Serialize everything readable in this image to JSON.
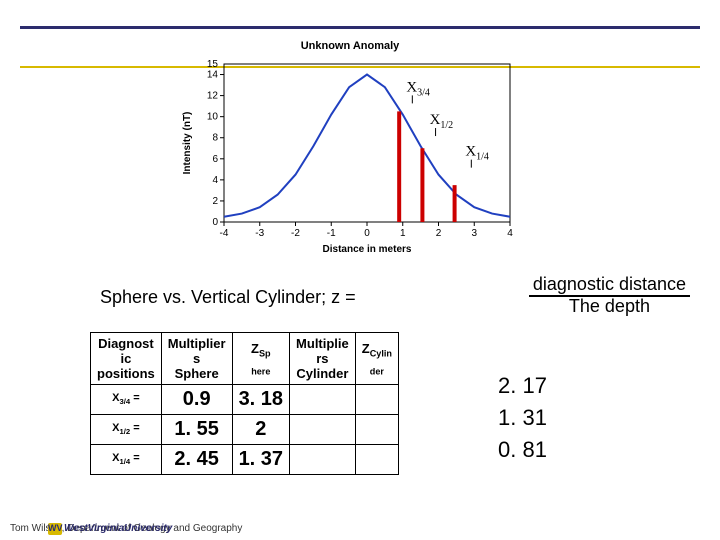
{
  "ruleColors": {
    "top": "#2c2c6d",
    "gold": "#d7b900"
  },
  "chart": {
    "title": "Unknown Anomaly",
    "xlabel": "Distance in meters",
    "ylabel": "Intensity (nT)",
    "xlim": [
      -4,
      4
    ],
    "ylim": [
      0,
      15
    ],
    "xticks": [
      -4,
      -3,
      -2,
      -1,
      0,
      1,
      2,
      3,
      4
    ],
    "yticks": [
      0,
      2,
      4,
      6,
      8,
      10,
      12,
      14
    ],
    "curve_x": [
      -4,
      -3.5,
      -3,
      -2.5,
      -2,
      -1.5,
      -1,
      -0.5,
      0,
      0.5,
      1,
      1.5,
      2,
      2.5,
      3,
      3.5,
      4
    ],
    "curve_y": [
      0.5,
      0.8,
      1.4,
      2.6,
      4.5,
      7.2,
      10.2,
      12.8,
      14.0,
      12.8,
      10.2,
      7.2,
      4.5,
      2.6,
      1.4,
      0.8,
      0.5
    ],
    "marker_x": [
      0.9,
      1.55,
      2.45
    ],
    "marker_y": [
      10.5,
      7.0,
      3.5
    ],
    "marker_labels": [
      "X",
      "X",
      "X"
    ],
    "marker_subs": [
      "3/4",
      "1/2",
      "1/4"
    ],
    "curve_color": "#2040c0",
    "marker_line_color": "#cc0000",
    "axis_color": "#000000",
    "tick_fontsize": 10,
    "label_fontsize": 10
  },
  "equation": {
    "lhs": "Sphere vs. Vertical Cylinder;   z =",
    "num": "diagnostic distance",
    "den": "The depth"
  },
  "table": {
    "headers": [
      "Diagnost\nic\npositions",
      "Multiplier\ns\nSphere",
      "Z",
      "Multiplie\nrs\nCylinder",
      "Z"
    ],
    "headerSubs": [
      "",
      "",
      "Sp\nhere",
      "",
      "Cylin\nder"
    ],
    "rows": [
      {
        "label": "X",
        "labelSub": "3/4",
        "multS": "0.9",
        "zS": "3. 18",
        "multC": "",
        "zC": ""
      },
      {
        "label": "X",
        "labelSub": "1/2",
        "multS": "1. 55",
        "zS": "2",
        "multC": "",
        "zC": ""
      },
      {
        "label": "X",
        "labelSub": "1/4",
        "multS": "2. 45",
        "zS": "1. 37",
        "multC": "",
        "zC": ""
      }
    ]
  },
  "zResults": [
    "2. 17",
    "1. 31",
    "0. 81"
  ],
  "footer": "Tom Wilson, Department of Geology and Geography",
  "logoText": "WestVirginiaUniversity",
  "logoMark": "WV"
}
